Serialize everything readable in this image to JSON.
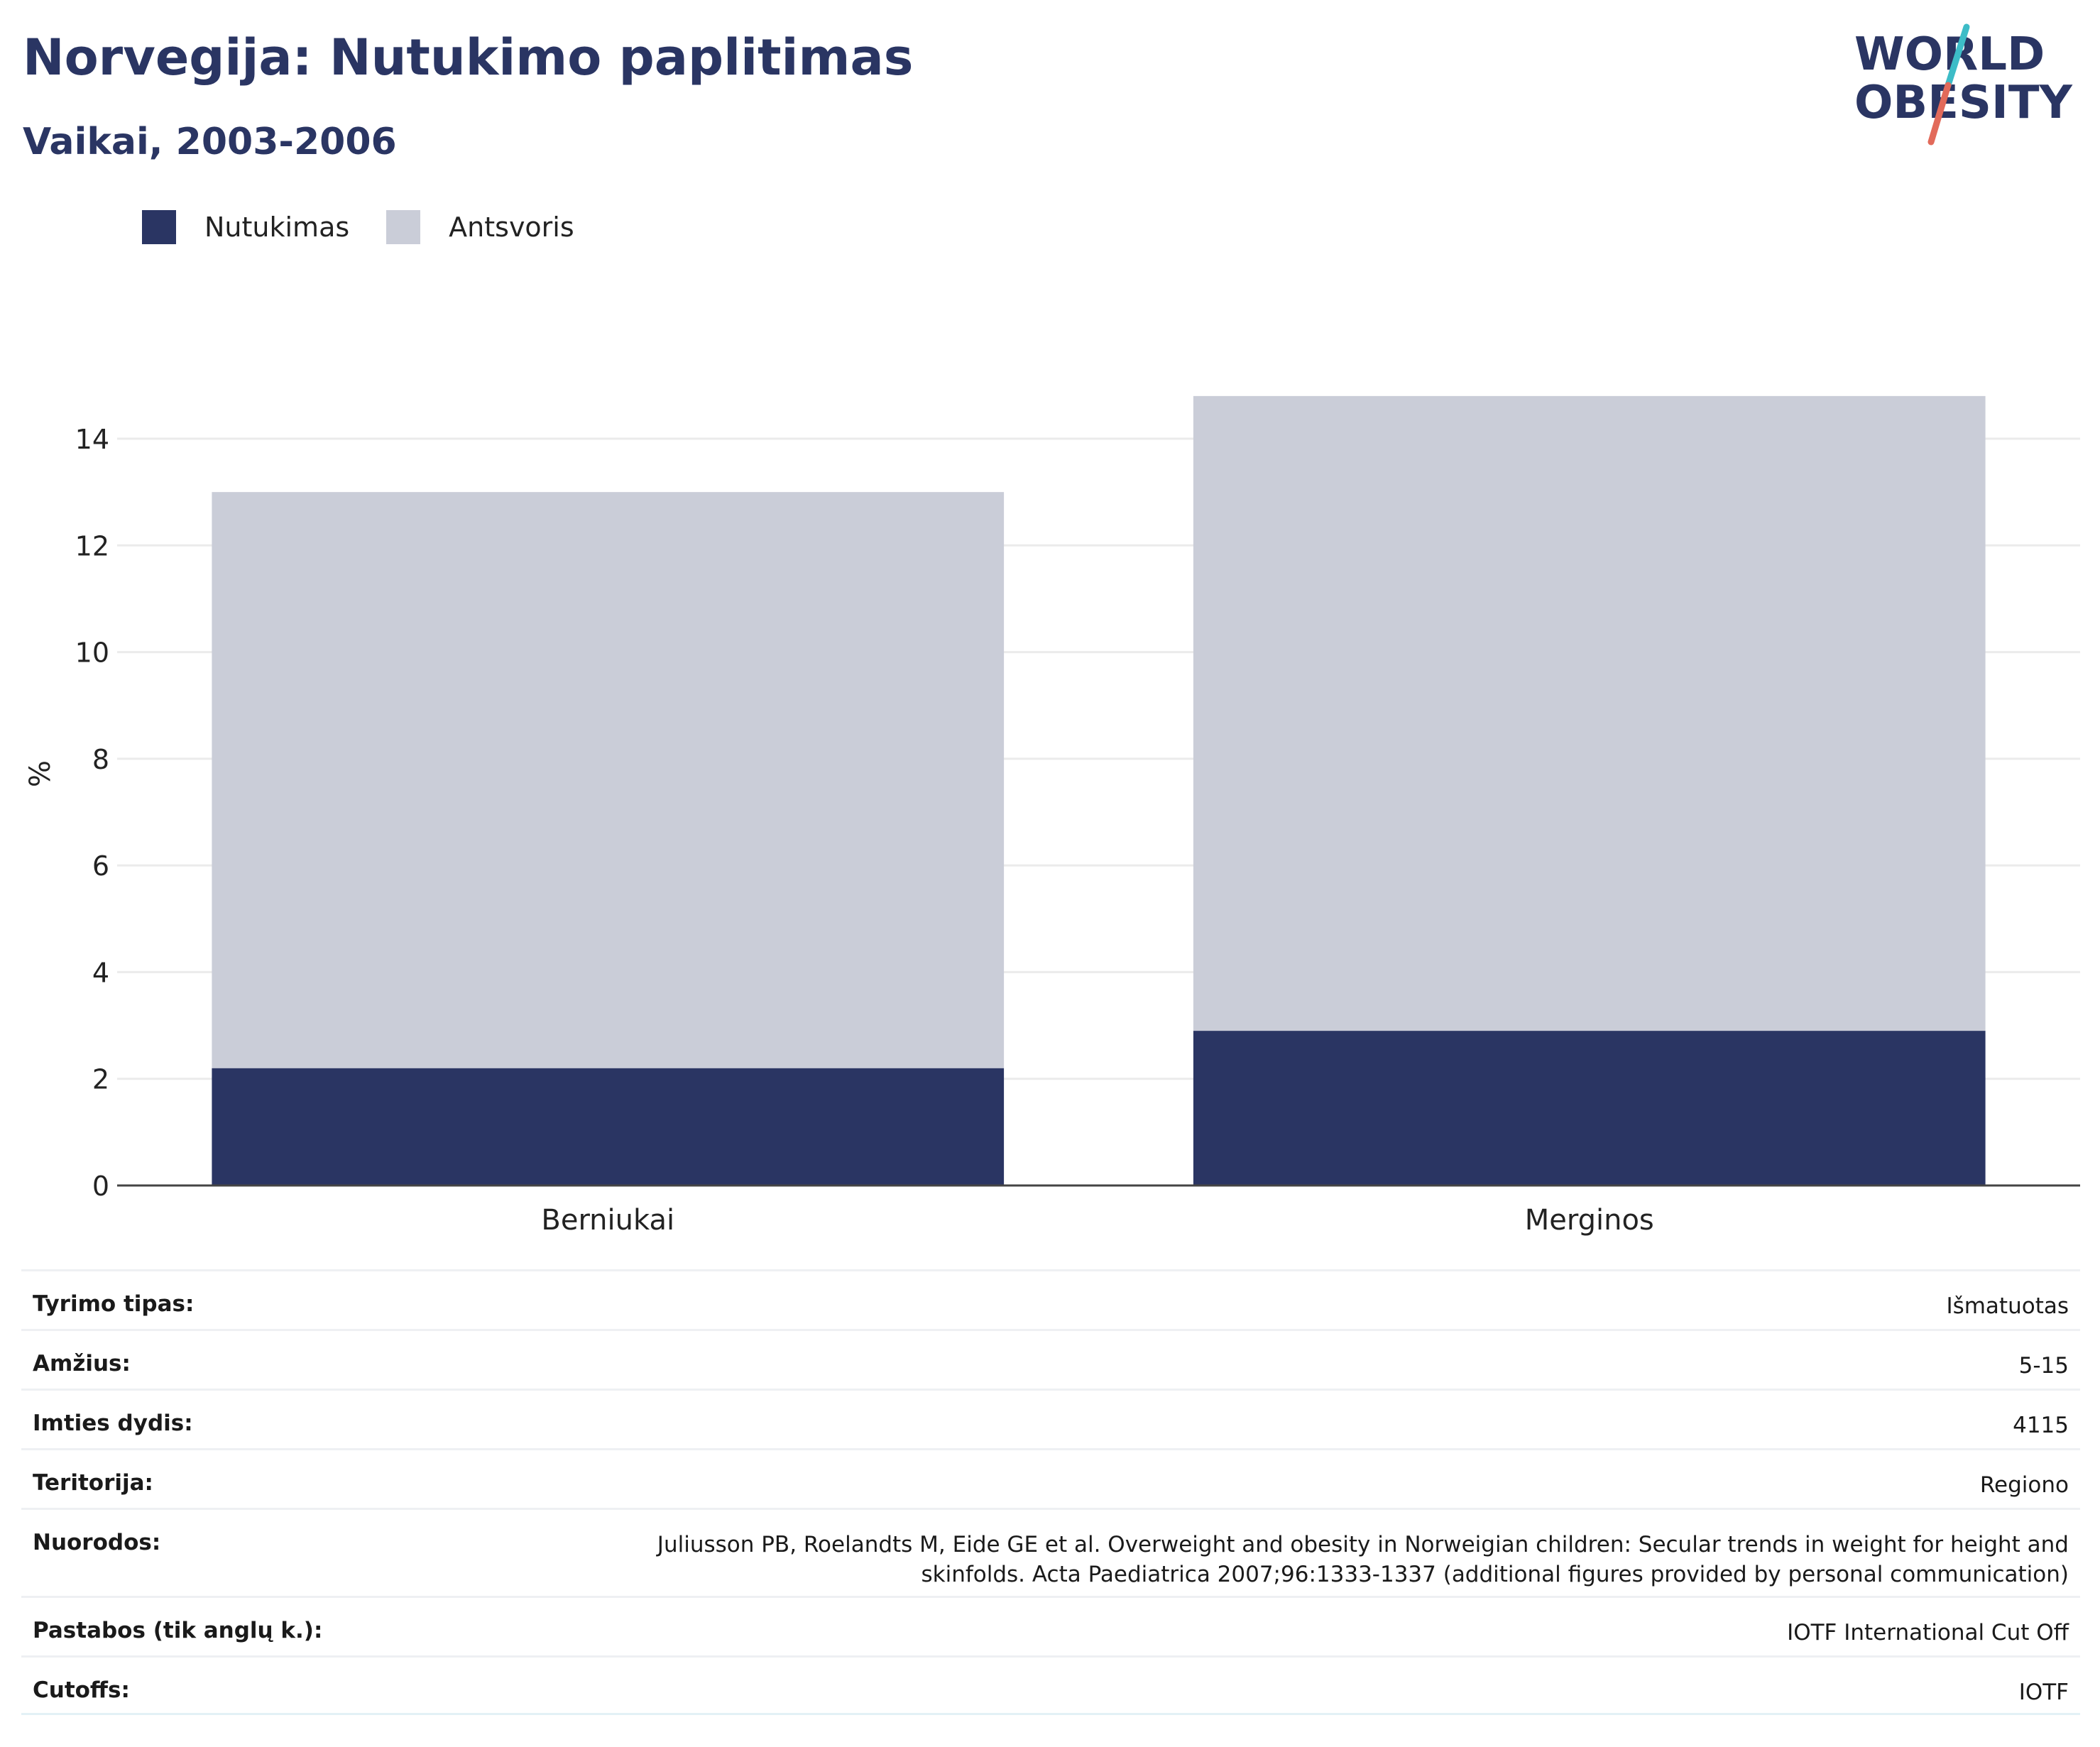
{
  "header": {
    "title": "Norvegija: Nutukimo paplitimas",
    "subtitle": "Vaikai, 2003-2006"
  },
  "logo": {
    "line1": "WORLD",
    "line2": "OBESITY",
    "icon": "world-obesity-logo"
  },
  "colors": {
    "obesity": "#2a3563",
    "overweight": "#cacdd8",
    "text": "#2a3563",
    "grid": "#ebebeb",
    "logo_slash_top": "#3dbcc7",
    "logo_slash_bottom": "#e26a5a"
  },
  "chart_data": {
    "type": "bar",
    "stacked": true,
    "categories": [
      "Berniukai",
      "Merginos"
    ],
    "series": [
      {
        "name": "Nutukimas",
        "values": [
          2.2,
          2.9
        ],
        "color": "#2a3563"
      },
      {
        "name": "Antsvoris",
        "values": [
          10.8,
          11.9
        ],
        "color": "#cacdd8"
      }
    ],
    "ylabel": "%",
    "ylim": [
      0,
      14.8
    ],
    "yticks": [
      0,
      2,
      4,
      6,
      8,
      10,
      12,
      14
    ],
    "grid": true,
    "legend": "top-left"
  },
  "info": [
    {
      "label": "Tyrimo tipas:",
      "value": "Išmatuotas"
    },
    {
      "label": "Amžius:",
      "value": "5-15"
    },
    {
      "label": "Imties dydis:",
      "value": "4115"
    },
    {
      "label": "Teritorija:",
      "value": "Regiono"
    },
    {
      "label": "Nuorodos:",
      "value": "Juliusson PB, Roelandts M, Eide GE et al. Overweight and obesity in Norweigian children: Secular trends in weight for height and skinfolds. Acta Paediatrica 2007;96:1333-1337 (additional figures provided by personal communication)"
    },
    {
      "label": "Pastabos (tik anglų k.):",
      "value": "IOTF International Cut Off"
    },
    {
      "label": "Cutoffs:",
      "value": "IOTF"
    }
  ]
}
